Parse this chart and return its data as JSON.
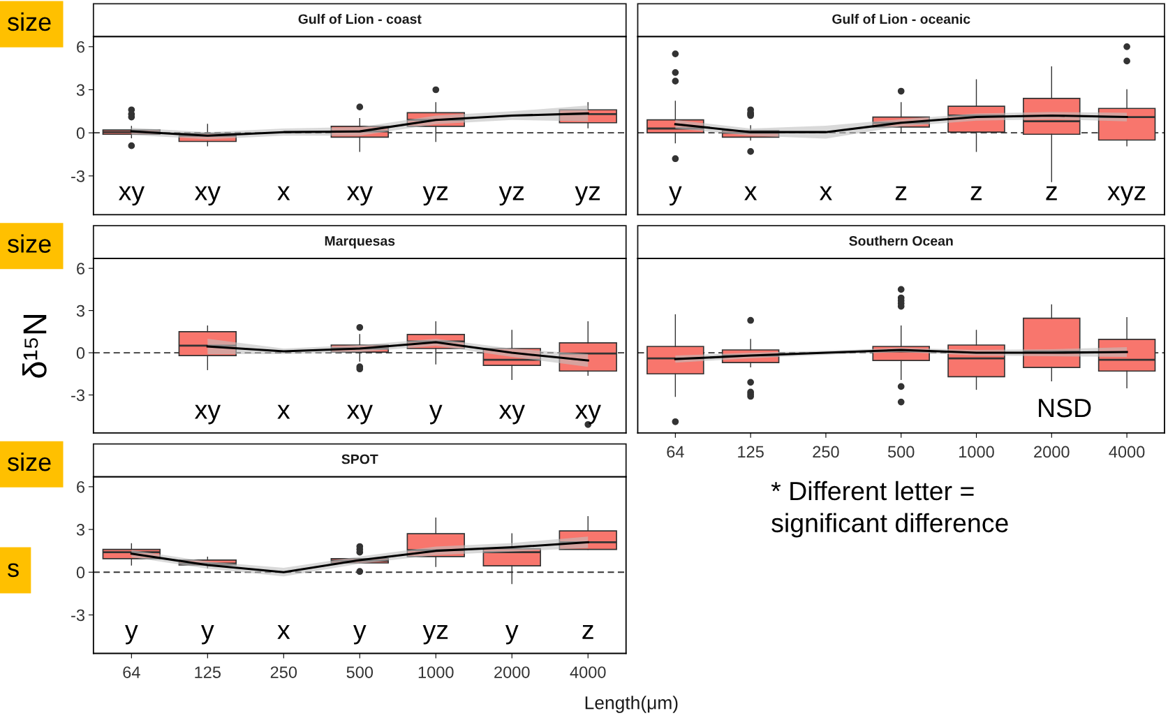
{
  "chart_data": [
    {
      "type": "box",
      "title": "Gulf of Lion - coast",
      "categories": [
        "64",
        "125",
        "250",
        "500",
        "1000",
        "2000",
        "4000"
      ],
      "ylim": [
        -5.7,
        6.7
      ],
      "yticks": [
        -3,
        0,
        3,
        6
      ],
      "tick_labels": "y",
      "ref_lines": [
        {
          "axis": "y",
          "value": 0,
          "line_style": "dashed",
          "color": "#333333"
        }
      ],
      "series": [
        {
          "type": "box",
          "color": "#f8766d",
          "boxes": [
            {
              "low": -0.35,
              "q1": -0.1,
              "median": 0.05,
              "q3": 0.2,
              "high": 0.45,
              "outliers": [
                1.6,
                1.3,
                1.1,
                -0.9
              ]
            },
            {
              "low": -0.9,
              "q1": -0.6,
              "median": -0.2,
              "q3": -0.05,
              "high": 0.6
            },
            null,
            {
              "low": -1.3,
              "q1": -0.3,
              "median": 0.1,
              "q3": 0.45,
              "high": 1.0,
              "outliers": [
                1.8
              ]
            },
            {
              "low": -0.6,
              "q1": 0.45,
              "median": 0.9,
              "q3": 1.4,
              "high": 2.1,
              "outliers": [
                3.0
              ]
            },
            null,
            {
              "low": 0.35,
              "q1": 0.7,
              "median": 1.3,
              "q3": 1.6,
              "high": 2.1
            }
          ]
        },
        {
          "type": "line",
          "color": "#000000",
          "values": [
            0.1,
            -0.2,
            0.05,
            0.1,
            0.9,
            1.2,
            1.35
          ],
          "lower": [
            -0.15,
            -0.45,
            -0.2,
            -0.2,
            0.6,
            0.9,
            0.8
          ],
          "upper": [
            0.35,
            0.05,
            0.3,
            0.4,
            1.2,
            1.5,
            1.9
          ]
        }
      ],
      "annotations": [
        "xy",
        "xy",
        "x",
        "xy",
        "yz",
        "yz",
        "yz",
        "size"
      ]
    },
    {
      "type": "box",
      "title": "Gulf of Lion - oceanic",
      "categories": [
        "64",
        "125",
        "250",
        "500",
        "1000",
        "2000",
        "4000"
      ],
      "ylim": [
        -5.7,
        6.7
      ],
      "yticks": [
        -3,
        0,
        3,
        6
      ],
      "tick_labels": false,
      "ref_lines": [
        {
          "axis": "y",
          "value": 0,
          "line_style": "dashed",
          "color": "#333333"
        }
      ],
      "series": [
        {
          "type": "box",
          "color": "#f8766d",
          "boxes": [
            {
              "low": -0.7,
              "q1": 0.0,
              "median": 0.3,
              "q3": 0.9,
              "high": 2.2,
              "outliers": [
                5.5,
                4.2,
                3.6,
                -1.8
              ]
            },
            {
              "low": -0.5,
              "q1": -0.3,
              "median": 0.0,
              "q3": 0.15,
              "high": 0.5,
              "outliers": [
                1.6,
                1.4,
                1.3,
                1.2,
                -1.3
              ]
            },
            null,
            {
              "low": 0.0,
              "q1": 0.4,
              "median": 0.7,
              "q3": 1.1,
              "high": 2.1,
              "outliers": [
                2.9
              ]
            },
            {
              "low": -1.3,
              "q1": 0.05,
              "median": 1.2,
              "q3": 1.85,
              "high": 3.7
            },
            {
              "low": -3.4,
              "q1": -0.1,
              "median": 0.8,
              "q3": 2.4,
              "high": 4.6
            },
            {
              "low": -0.9,
              "q1": -0.5,
              "median": 1.1,
              "q3": 1.7,
              "high": 3.0,
              "outliers": [
                6.0,
                5.0
              ]
            }
          ]
        },
        {
          "type": "line",
          "color": "#000000",
          "values": [
            0.6,
            0.05,
            0.05,
            0.7,
            1.1,
            1.2,
            1.1
          ],
          "lower": [
            0.3,
            -0.2,
            -0.4,
            0.45,
            0.85,
            0.95,
            0.8
          ],
          "upper": [
            0.9,
            0.3,
            0.5,
            0.95,
            1.35,
            1.45,
            1.4
          ]
        }
      ],
      "annotations": [
        "y",
        "x",
        "x",
        "z",
        "z",
        "z",
        "xyz"
      ]
    },
    {
      "type": "box",
      "title": "Marquesas",
      "categories": [
        "64",
        "125",
        "250",
        "500",
        "1000",
        "2000",
        "4000"
      ],
      "ylim": [
        -5.7,
        6.7
      ],
      "yticks": [
        -3,
        0,
        3,
        6
      ],
      "tick_labels": "y",
      "ylabel": "δ¹⁵N",
      "ref_lines": [
        {
          "axis": "y",
          "value": 0,
          "line_style": "dashed",
          "color": "#333333"
        }
      ],
      "series": [
        {
          "type": "box",
          "color": "#f8766d",
          "boxes": [
            null,
            {
              "low": -1.2,
              "q1": -0.2,
              "median": 0.5,
              "q3": 1.5,
              "high": 1.9
            },
            null,
            {
              "low": -0.6,
              "q1": 0.05,
              "median": 0.3,
              "q3": 0.55,
              "high": 1.3,
              "outliers": [
                1.8,
                -1.0,
                -1.15
              ]
            },
            {
              "low": -0.8,
              "q1": 0.3,
              "median": 0.8,
              "q3": 1.3,
              "high": 2.2
            },
            {
              "low": -1.9,
              "q1": -0.9,
              "median": -0.5,
              "q3": 0.3,
              "high": 1.6
            },
            {
              "low": -1.6,
              "q1": -1.3,
              "median": -0.05,
              "q3": 0.7,
              "high": 2.2,
              "outliers": [
                -5.1
              ]
            }
          ]
        },
        {
          "type": "line",
          "color": "#000000",
          "values": [
            null,
            0.45,
            0.1,
            0.3,
            0.75,
            0.0,
            -0.55
          ],
          "lower": [
            null,
            -0.1,
            -0.1,
            0.05,
            0.5,
            -0.3,
            -1.0
          ],
          "upper": [
            null,
            1.0,
            0.3,
            0.55,
            1.0,
            0.3,
            -0.1
          ]
        }
      ],
      "annotations": [
        "xy",
        "x",
        "xy",
        "y",
        "xy",
        "xy",
        "size"
      ]
    },
    {
      "type": "box",
      "title": "Southern Ocean",
      "categories": [
        "64",
        "125",
        "250",
        "500",
        "1000",
        "2000",
        "4000"
      ],
      "ylim": [
        -5.7,
        6.7
      ],
      "yticks": [
        -3,
        0,
        3,
        6
      ],
      "tick_labels": "x",
      "ref_lines": [
        {
          "axis": "y",
          "value": 0,
          "line_style": "dashed",
          "color": "#333333"
        }
      ],
      "series": [
        {
          "type": "box",
          "color": "#f8766d",
          "boxes": [
            {
              "low": -3.1,
              "q1": -1.5,
              "median": -0.4,
              "q3": 0.45,
              "high": 2.7,
              "outliers": [
                -4.9
              ]
            },
            {
              "low": -1.0,
              "q1": -0.7,
              "median": -0.2,
              "q3": 0.2,
              "high": 0.95,
              "outliers": [
                2.3,
                -2.1,
                -2.8,
                -2.95,
                -3.1
              ]
            },
            null,
            {
              "low": -1.9,
              "q1": -0.55,
              "median": 0.1,
              "q3": 0.45,
              "high": 1.9,
              "outliers": [
                4.5,
                3.9,
                3.7,
                3.5,
                3.3,
                -2.4,
                -3.5
              ]
            },
            {
              "low": -2.6,
              "q1": -1.7,
              "median": -0.4,
              "q3": 0.55,
              "high": 1.6
            },
            {
              "low": -2.0,
              "q1": -1.05,
              "median": 0.1,
              "q3": 2.45,
              "high": 3.4
            },
            {
              "low": -2.5,
              "q1": -1.3,
              "median": -0.5,
              "q3": 0.95,
              "high": 2.5
            }
          ]
        },
        {
          "type": "line",
          "color": "#000000",
          "values": [
            -0.45,
            -0.2,
            0.0,
            0.2,
            0.0,
            0.0,
            0.05
          ],
          "lower": [
            -0.7,
            -0.4,
            -0.15,
            0.05,
            -0.2,
            -0.25,
            -0.3
          ],
          "upper": [
            -0.2,
            0.0,
            0.15,
            0.35,
            0.2,
            0.25,
            0.4
          ]
        }
      ],
      "annotations": [
        "NSD",
        "* Different letter =\nsignificant difference"
      ]
    },
    {
      "type": "box",
      "title": "SPOT",
      "categories": [
        "64",
        "125",
        "250",
        "500",
        "1000",
        "2000",
        "4000"
      ],
      "ylim": [
        -5.7,
        6.7
      ],
      "yticks": [
        -3,
        0,
        3,
        6
      ],
      "xlabel": "Length(μm)",
      "ref_lines": [
        {
          "axis": "y",
          "value": 0,
          "line_style": "dashed",
          "color": "#333333"
        }
      ],
      "series": [
        {
          "type": "box",
          "color": "#f8766d",
          "boxes": [
            {
              "low": 0.5,
              "q1": 0.95,
              "median": 1.4,
              "q3": 1.6,
              "high": 2.0
            },
            {
              "low": 0.3,
              "q1": 0.5,
              "median": 0.6,
              "q3": 0.85,
              "high": 1.05
            },
            null,
            {
              "low": 0.65,
              "q1": 0.65,
              "median": 0.8,
              "q3": 0.95,
              "high": 0.95,
              "outliers": [
                1.8,
                1.6,
                1.4,
                0.05
              ]
            },
            {
              "low": 0.4,
              "q1": 1.1,
              "median": 1.55,
              "q3": 2.7,
              "high": 3.8
            },
            {
              "low": -0.8,
              "q1": 0.45,
              "median": 1.4,
              "q3": 1.65,
              "high": 2.7
            },
            {
              "low": 1.6,
              "q1": 1.6,
              "median": 2.1,
              "q3": 2.9,
              "high": 3.9
            }
          ]
        },
        {
          "type": "line",
          "color": "#000000",
          "values": [
            1.3,
            0.5,
            0.0,
            0.85,
            1.5,
            1.75,
            2.1
          ],
          "lower": [
            1.05,
            0.25,
            -0.3,
            0.6,
            1.2,
            1.45,
            1.7
          ],
          "upper": [
            1.55,
            0.75,
            0.3,
            1.1,
            1.8,
            2.05,
            2.5
          ]
        }
      ],
      "annotations": [
        "y",
        "y",
        "x",
        "y",
        "yz",
        "y",
        "z",
        "size",
        "s"
      ]
    }
  ]
}
